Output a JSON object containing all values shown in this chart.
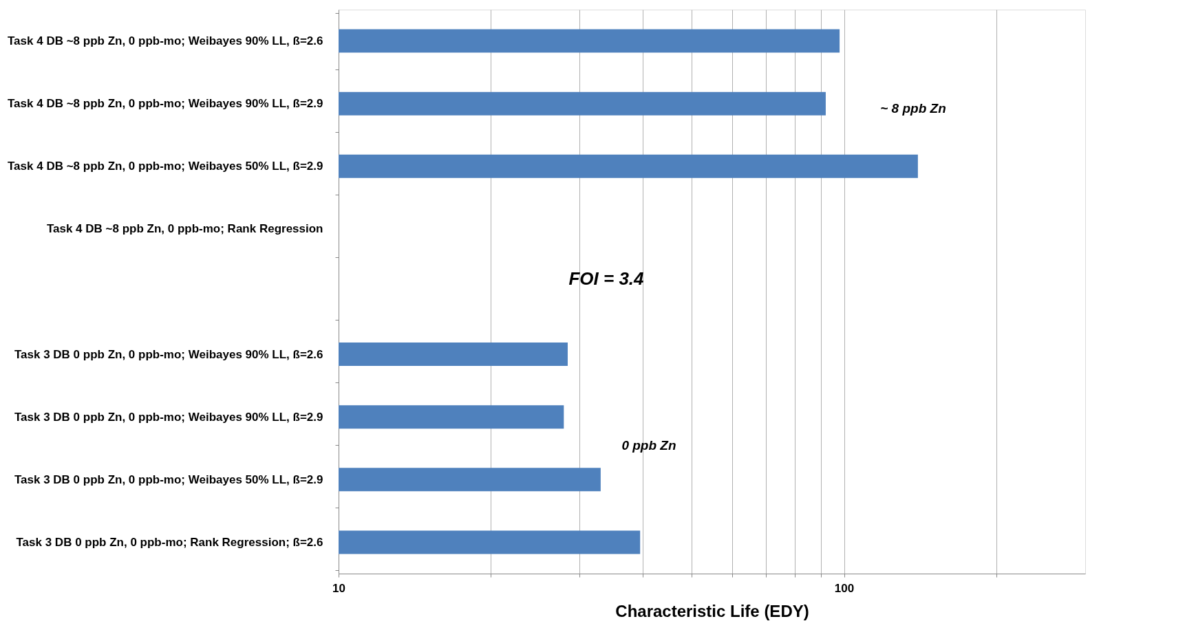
{
  "chart_data": {
    "type": "bar",
    "orientation": "horizontal",
    "log": "x",
    "xlabel": "Characteristic Life (EDY)",
    "categories": [
      "Task 4 DB ~8 ppb Zn,  0 ppb-mo; Weibayes 90% LL, ß=2.6",
      "Task 4 DB ~8 ppb Zn,  0 ppb-mo; Weibayes 90% LL, ß=2.9",
      "Task 4 DB ~8 ppb Zn,  0 ppb-mo; Weibayes 50% LL, ß=2.9",
      "Task 4 DB ~8 ppb Zn,  0 ppb-mo; Rank Regression",
      null,
      "Task 3 DB 0 ppb Zn,  0 ppb-mo; Weibayes 90% LL, ß=2.6",
      "Task 3 DB 0 ppb Zn,  0 ppb-mo; Weibayes 90% LL, ß=2.9",
      "Task 3 DB 0 ppb Zn,  0 ppb-mo; Weibayes 50% LL, ß=2.9",
      "Task 3 DB 0 ppb Zn,  0 ppb-mo; Rank Regression; ß=2.6"
    ],
    "values": [
      98,
      92,
      140,
      null,
      null,
      28.4,
      27.9,
      33,
      39.5
    ],
    "color": "#4f81bd",
    "xlim": [
      10,
      300
    ],
    "xticks": [
      10,
      {
        "value": 20,
        "label": null
      },
      {
        "value": 30,
        "label": null
      },
      {
        "value": 40,
        "label": null
      },
      {
        "value": 50,
        "label": null
      },
      {
        "value": 60,
        "label": null
      },
      {
        "value": 70,
        "label": null
      },
      {
        "value": 80,
        "label": null
      },
      {
        "value": 90,
        "label": null
      },
      100,
      {
        "value": 200,
        "label": null
      }
    ],
    "grid": "x",
    "annotations": [
      "~ 8 ppb Zn",
      "FOI = 3.4",
      "0 ppb Zn"
    ]
  }
}
